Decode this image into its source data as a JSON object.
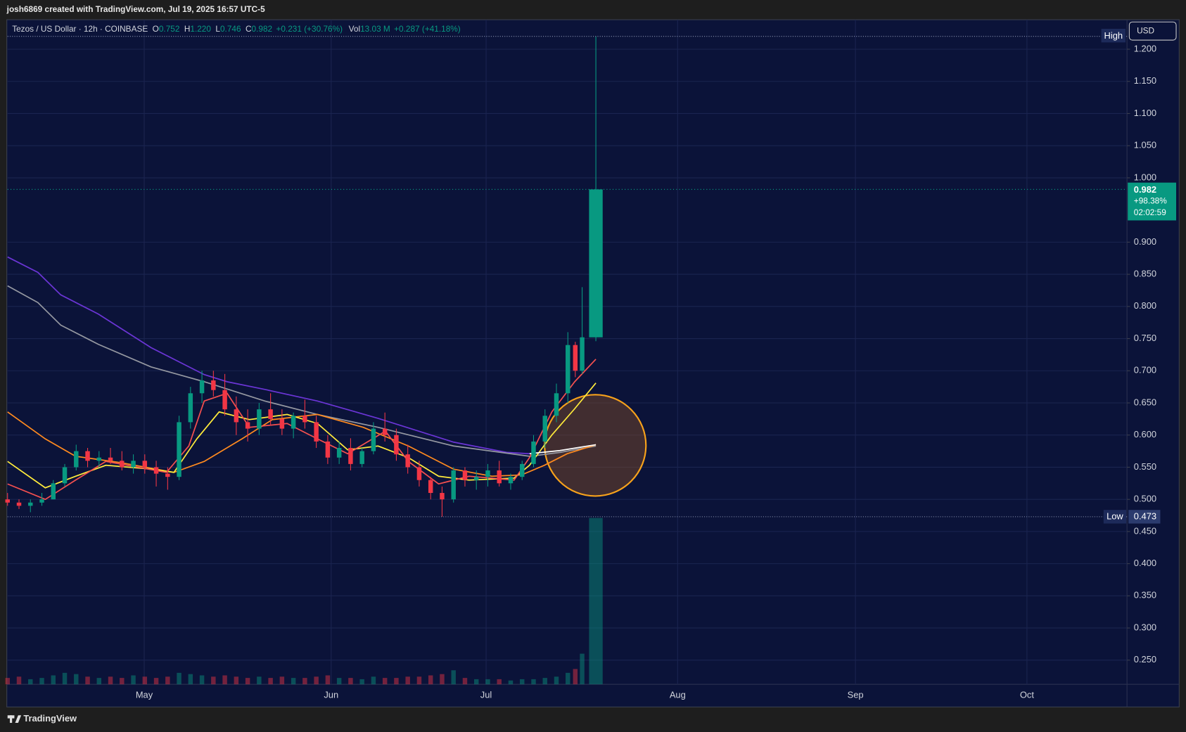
{
  "top_note": "josh6869 created with TradingView.com, Jul 19, 2025 16:57 UTC-5",
  "footer": "TradingView",
  "chart_data": {
    "type": "candlestick",
    "legend": {
      "symbol": "Tezos / US Dollar · 12h · COINBASE",
      "items": [
        {
          "label": "O",
          "value": "0.752"
        },
        {
          "label": "H",
          "value": "1.220"
        },
        {
          "label": "L",
          "value": "0.746"
        },
        {
          "label": "C",
          "value": "0.982"
        }
      ],
      "change": "+0.231 (+30.76%)",
      "volume": {
        "label": "Vol",
        "value": "13.03 M",
        "change": "+0.287 (+41.18%)"
      }
    },
    "currency": "USD",
    "up_color": "#089981",
    "down_color": "#f23645",
    "x": [
      0,
      2,
      4,
      6,
      8,
      10,
      12,
      14,
      16,
      18,
      20,
      22,
      24,
      26,
      28,
      30,
      32,
      34,
      36,
      38,
      40,
      42,
      44,
      46,
      48,
      50,
      52,
      54,
      56,
      58,
      60,
      62,
      64,
      66,
      68,
      70,
      72,
      74,
      76,
      78,
      80,
      82,
      84,
      86,
      88,
      90,
      92,
      94,
      96,
      98,
      99.3,
      100.5,
      102.9
    ],
    "open": [
      0.5,
      0.495,
      0.49,
      0.495,
      0.5,
      0.525,
      0.55,
      0.575,
      0.56,
      0.565,
      0.56,
      0.55,
      0.56,
      0.55,
      0.54,
      0.535,
      0.62,
      0.665,
      0.685,
      0.67,
      0.64,
      0.62,
      0.61,
      0.64,
      0.625,
      0.61,
      0.63,
      0.62,
      0.59,
      0.565,
      0.58,
      0.555,
      0.575,
      0.61,
      0.6,
      0.57,
      0.55,
      0.53,
      0.51,
      0.5,
      0.545,
      0.53,
      0.535,
      0.545,
      0.525,
      0.535,
      0.555,
      0.59,
      0.63,
      0.665,
      0.74,
      0.7,
      0.752
    ],
    "high": [
      0.51,
      0.5,
      0.5,
      0.51,
      0.53,
      0.555,
      0.585,
      0.58,
      0.575,
      0.58,
      0.575,
      0.57,
      0.57,
      0.56,
      0.55,
      0.63,
      0.675,
      0.7,
      0.7,
      0.695,
      0.66,
      0.64,
      0.65,
      0.665,
      0.64,
      0.635,
      0.655,
      0.63,
      0.6,
      0.59,
      0.595,
      0.58,
      0.62,
      0.635,
      0.61,
      0.585,
      0.56,
      0.535,
      0.52,
      0.55,
      0.55,
      0.545,
      0.555,
      0.56,
      0.54,
      0.56,
      0.6,
      0.64,
      0.68,
      0.76,
      0.745,
      0.83,
      1.22
    ],
    "low": [
      0.49,
      0.485,
      0.48,
      0.49,
      0.5,
      0.52,
      0.545,
      0.55,
      0.55,
      0.555,
      0.545,
      0.54,
      0.54,
      0.52,
      0.515,
      0.53,
      0.61,
      0.65,
      0.66,
      0.63,
      0.6,
      0.59,
      0.6,
      0.615,
      0.6,
      0.595,
      0.61,
      0.58,
      0.555,
      0.555,
      0.545,
      0.55,
      0.57,
      0.59,
      0.56,
      0.54,
      0.52,
      0.5,
      0.473,
      0.495,
      0.52,
      0.515,
      0.52,
      0.52,
      0.515,
      0.53,
      0.55,
      0.58,
      0.62,
      0.65,
      0.69,
      0.695,
      0.746
    ],
    "close": [
      0.495,
      0.49,
      0.495,
      0.5,
      0.525,
      0.55,
      0.575,
      0.56,
      0.565,
      0.56,
      0.55,
      0.56,
      0.55,
      0.54,
      0.535,
      0.62,
      0.665,
      0.685,
      0.67,
      0.64,
      0.62,
      0.61,
      0.64,
      0.625,
      0.61,
      0.63,
      0.62,
      0.59,
      0.565,
      0.58,
      0.555,
      0.575,
      0.61,
      0.6,
      0.57,
      0.55,
      0.53,
      0.51,
      0.5,
      0.545,
      0.53,
      0.535,
      0.545,
      0.525,
      0.535,
      0.555,
      0.59,
      0.63,
      0.665,
      0.74,
      0.7,
      0.752,
      0.982
    ],
    "volume": [
      0.5,
      0.6,
      0.4,
      0.5,
      0.7,
      0.9,
      0.8,
      0.6,
      0.5,
      0.6,
      0.5,
      0.7,
      0.6,
      0.5,
      0.6,
      0.9,
      0.8,
      0.7,
      0.6,
      0.7,
      0.6,
      0.5,
      0.6,
      0.5,
      0.6,
      0.5,
      0.5,
      0.6,
      0.7,
      0.5,
      0.5,
      0.4,
      0.6,
      0.5,
      0.5,
      0.6,
      0.6,
      0.7,
      0.8,
      1.1,
      0.5,
      0.4,
      0.4,
      0.4,
      0.3,
      0.4,
      0.4,
      0.5,
      0.6,
      0.9,
      1.2,
      2.4,
      13.03
    ],
    "moving_averages": [
      {
        "color": "#6b35d6",
        "x": [
          0,
          5.3,
          9.3,
          15.9,
          25.1,
          34.4,
          38.4,
          45.0,
          54.2,
          64.8,
          78.0,
          87.3,
          91.3
        ],
        "values": [
          0.877,
          0.853,
          0.818,
          0.788,
          0.736,
          0.694,
          0.683,
          0.671,
          0.653,
          0.626,
          0.589,
          0.573,
          0.571
        ]
      },
      {
        "color": "#9598a1",
        "x": [
          0,
          5.3,
          9.3,
          15.9,
          25.1,
          34.4,
          45.0,
          54.2,
          64.8,
          78.0,
          91.3,
          96.6,
          102.9
        ],
        "values": [
          0.832,
          0.806,
          0.771,
          0.741,
          0.706,
          0.683,
          0.653,
          0.632,
          0.612,
          0.583,
          0.567,
          0.573,
          0.583
        ]
      },
      {
        "color": "#ff8a1f",
        "x": [
          0,
          6.6,
          11.9,
          19.8,
          29.1,
          34.4,
          41.0,
          46.3,
          54.2,
          62.2,
          70.1,
          78.0,
          84.7,
          89.9,
          93.9,
          97.9,
          102.9
        ],
        "values": [
          0.636,
          0.594,
          0.567,
          0.557,
          0.542,
          0.559,
          0.594,
          0.624,
          0.632,
          0.612,
          0.583,
          0.547,
          0.536,
          0.538,
          0.553,
          0.571,
          0.585
        ]
      },
      {
        "color": "#ffeb3b",
        "x": [
          0,
          6.6,
          11.9,
          17.2,
          25.1,
          29.1,
          33.1,
          37.0,
          42.3,
          48.9,
          54.2,
          59.5,
          64.8,
          70.1,
          75.4,
          80.7,
          88.6,
          91.3,
          95.2,
          99.2,
          102.9
        ],
        "values": [
          0.559,
          0.518,
          0.536,
          0.553,
          0.547,
          0.542,
          0.594,
          0.636,
          0.624,
          0.632,
          0.618,
          0.577,
          0.583,
          0.565,
          0.536,
          0.53,
          0.533,
          0.553,
          0.6,
          0.641,
          0.681
        ]
      },
      {
        "color": "#f5504f",
        "x": [
          0,
          6.6,
          11.9,
          17.2,
          27.8,
          31.7,
          34.4,
          38.4,
          42.3,
          48.9,
          54.2,
          59.5,
          66.1,
          70.1,
          75.4,
          80.7,
          88.6,
          91.3,
          95.2,
          99.2,
          102.9
        ],
        "values": [
          0.524,
          0.5,
          0.53,
          0.559,
          0.542,
          0.583,
          0.653,
          0.665,
          0.612,
          0.618,
          0.594,
          0.571,
          0.606,
          0.559,
          0.524,
          0.536,
          0.53,
          0.565,
          0.636,
          0.683,
          0.718
        ]
      },
      {
        "color": "#ffffff",
        "x": [
          91.3,
          96.6,
          102.9
        ],
        "values": [
          0.571,
          0.576,
          0.585
        ]
      }
    ],
    "xlim": [
      0,
      195.8
    ],
    "xticks": [
      {
        "value": 23.9,
        "label": "May"
      },
      {
        "value": 56.6,
        "label": "Jun"
      },
      {
        "value": 83.7,
        "label": "Jul"
      },
      {
        "value": 117.2,
        "label": "Aug"
      },
      {
        "value": 148.3,
        "label": "Sep"
      },
      {
        "value": 178.3,
        "label": "Oct"
      }
    ],
    "ylim": [
      0.2124,
      1.2459
    ],
    "yticks": [
      {
        "value": 1.2,
        "label": "1.200"
      },
      {
        "value": 1.15,
        "label": "1.150"
      },
      {
        "value": 1.1,
        "label": "1.100"
      },
      {
        "value": 1.05,
        "label": "1.050"
      },
      {
        "value": 1.0,
        "label": "1.000"
      },
      {
        "value": 0.9,
        "label": "0.900"
      },
      {
        "value": 0.85,
        "label": "0.850"
      },
      {
        "value": 0.8,
        "label": "0.800"
      },
      {
        "value": 0.75,
        "label": "0.750"
      },
      {
        "value": 0.7,
        "label": "0.700"
      },
      {
        "value": 0.65,
        "label": "0.650"
      },
      {
        "value": 0.6,
        "label": "0.600"
      },
      {
        "value": 0.55,
        "label": "0.550"
      },
      {
        "value": 0.5,
        "label": "0.500"
      },
      {
        "value": 0.45,
        "label": "0.450"
      },
      {
        "value": 0.4,
        "label": "0.400"
      },
      {
        "value": 0.35,
        "label": "0.350"
      },
      {
        "value": 0.3,
        "label": "0.300"
      },
      {
        "value": 0.25,
        "label": "0.250"
      }
    ],
    "grid": true,
    "high_marker": {
      "label": "High"
    },
    "low_marker": {
      "label": "Low",
      "value": 0.473
    },
    "price_tag": {
      "value": 0.982,
      "change": "+98.38%",
      "countdown": "02:02:59"
    }
  }
}
